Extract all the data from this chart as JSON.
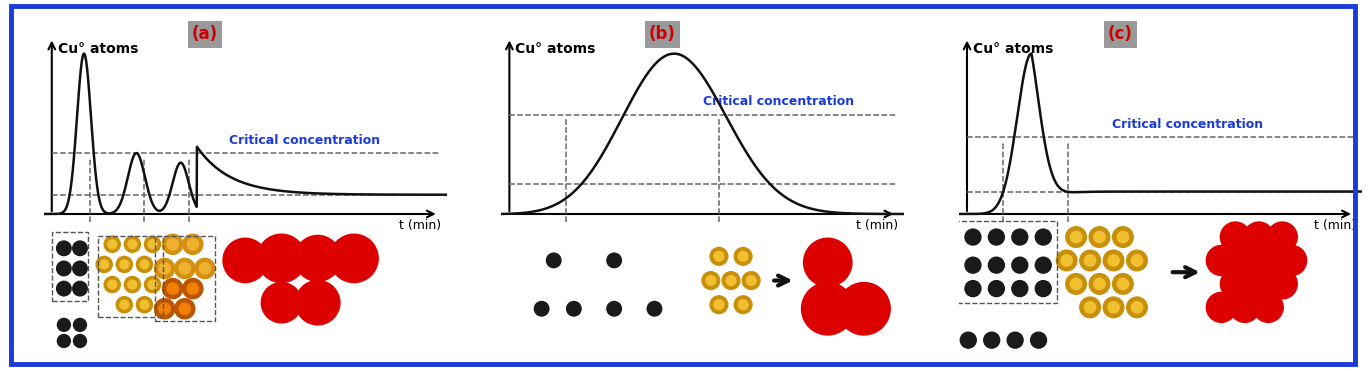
{
  "fig_bg": "#ffffff",
  "outer_border_color": "#1a3adb",
  "panel_bg": "#ffffff",
  "ylabel": "Cu° atoms",
  "xlabel": "t (min)",
  "critical_label": "Critical concentration",
  "critical_color": "#1a3adb",
  "critical_fontsize": 9,
  "ylabel_fontsize": 10,
  "xlabel_fontsize": 9,
  "panel_labels": [
    "(a)",
    "(b)",
    "(c)"
  ],
  "panel_label_color": "#cc0000",
  "panel_label_bg": "#999999",
  "panel_label_fontsize": 12,
  "curve_color": "#111111",
  "curve_lw": 1.8,
  "dash_color": "#666666",
  "dash_lw": 1.1,
  "black_dot_color": "#1a1a1a",
  "gold_outer": "#c8900a",
  "gold_inner": "#f0c030",
  "red_color": "#dd0000"
}
